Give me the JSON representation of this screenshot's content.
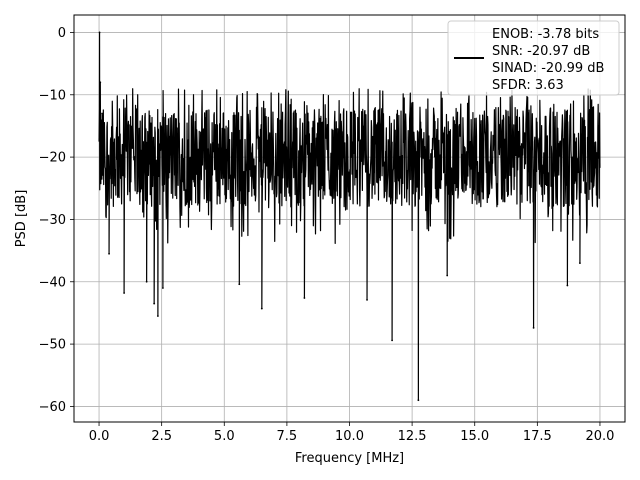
{
  "chart_data": {
    "type": "line",
    "title": "",
    "xlabel": "Frequency [MHz]",
    "ylabel": "PSD [dB]",
    "xlim": [
      -1.0,
      21.0
    ],
    "ylim": [
      -62.5,
      2.8
    ],
    "x_ticks": [
      0.0,
      2.5,
      5.0,
      7.5,
      10.0,
      12.5,
      15.0,
      17.5,
      20.0
    ],
    "x_tick_labels": [
      "0.0",
      "2.5",
      "5.0",
      "7.5",
      "10.0",
      "12.5",
      "15.0",
      "17.5",
      "20.0"
    ],
    "y_ticks": [
      0,
      -10,
      -20,
      -30,
      -40,
      -50,
      -60
    ],
    "y_tick_labels": [
      "0",
      "−10",
      "−20",
      "−30",
      "−40",
      "−50",
      "−60"
    ],
    "grid": true,
    "legend_position": "top-right",
    "legend_lines": [
      "ENOB: -3.78 bits",
      "SNR: -20.97 dB",
      "SINAD: -20.99 dB",
      "SFDR: 3.63"
    ],
    "series": [
      {
        "color": "#000000",
        "x_range": [
          0.0,
          20.0
        ],
        "noise_floor_band": [
          -28,
          -12
        ],
        "peaks": [
          {
            "x": 0.02,
            "y": 0.0
          },
          {
            "x": 0.05,
            "y": -8.0
          },
          {
            "x": 0.12,
            "y": -13.0
          }
        ],
        "dips": [
          {
            "x": 0.4,
            "y": -35.5
          },
          {
            "x": 1.0,
            "y": -41.8
          },
          {
            "x": 1.9,
            "y": -40.0
          },
          {
            "x": 2.2,
            "y": -43.5
          },
          {
            "x": 2.35,
            "y": -45.5
          },
          {
            "x": 2.55,
            "y": -41.0
          },
          {
            "x": 5.6,
            "y": -40.4
          },
          {
            "x": 6.5,
            "y": -44.3
          },
          {
            "x": 8.2,
            "y": -42.6
          },
          {
            "x": 10.7,
            "y": -42.9
          },
          {
            "x": 11.7,
            "y": -49.4
          },
          {
            "x": 12.75,
            "y": -59.0
          },
          {
            "x": 13.9,
            "y": -39.0
          },
          {
            "x": 17.35,
            "y": -47.4
          },
          {
            "x": 18.7,
            "y": -40.6
          },
          {
            "x": 19.2,
            "y": -37.0
          }
        ]
      }
    ]
  }
}
